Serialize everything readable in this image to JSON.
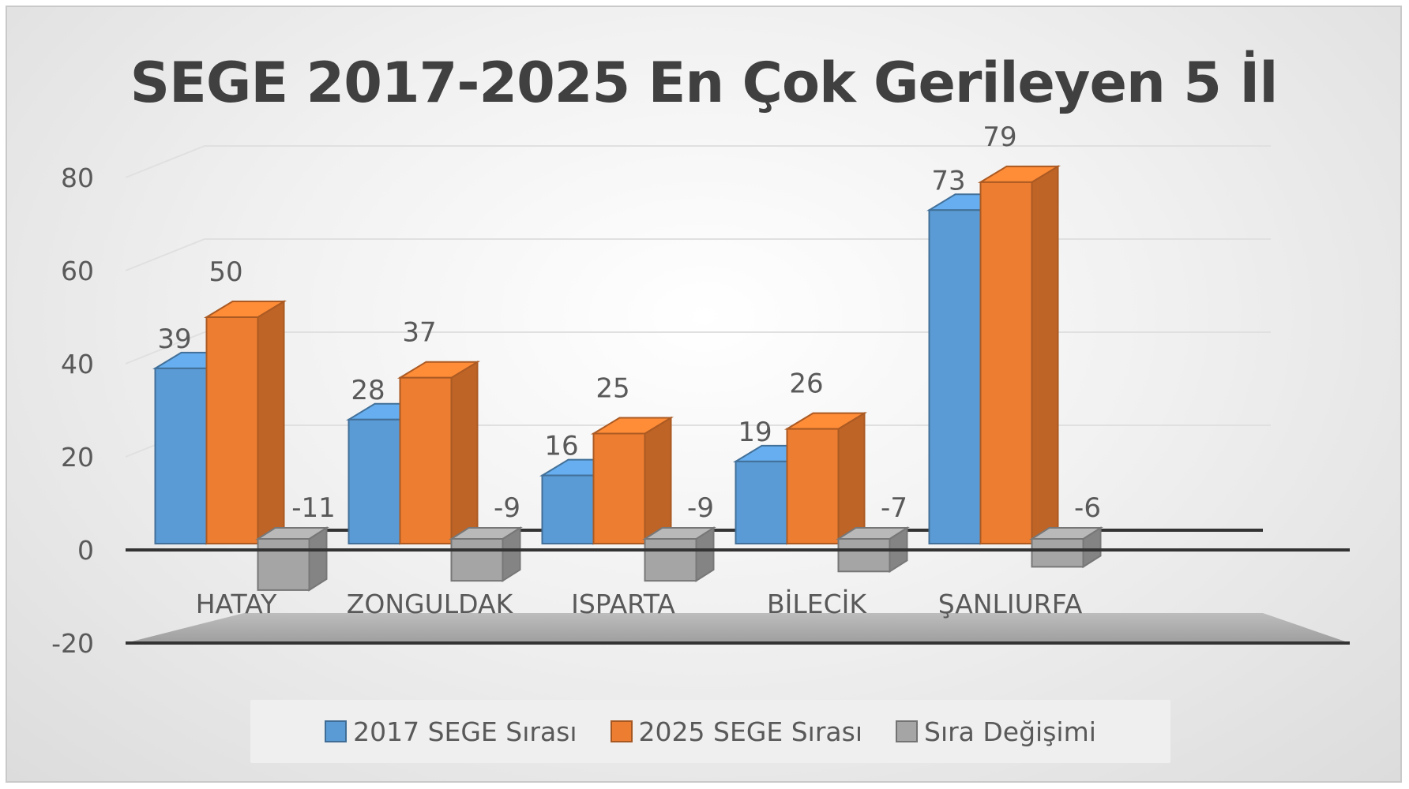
{
  "chart_data": {
    "type": "bar",
    "title": "SEGE 2017-2025 En Çok Gerileyen 5 İl",
    "categories": [
      "HATAY",
      "ZONGULDAK",
      "ISPARTA",
      "BİLECİK",
      "ŞANLIURFA"
    ],
    "series": [
      {
        "name": "2017 SEGE Sırası",
        "values": [
          39,
          28,
          16,
          19,
          73
        ],
        "color": "#5b9bd5"
      },
      {
        "name": "2025 SEGE Sırası",
        "values": [
          50,
          37,
          25,
          26,
          79
        ],
        "color": "#ed7d31"
      },
      {
        "name": "Sıra Değişimi",
        "values": [
          -11,
          -9,
          -9,
          -7,
          -6
        ],
        "color": "#a5a5a5"
      }
    ],
    "ylim": [
      -20,
      80
    ],
    "yticks": [
      -20,
      0,
      20,
      40,
      60,
      80
    ],
    "grid": true,
    "legend": "bottom",
    "style": "3d-clustered-column"
  }
}
